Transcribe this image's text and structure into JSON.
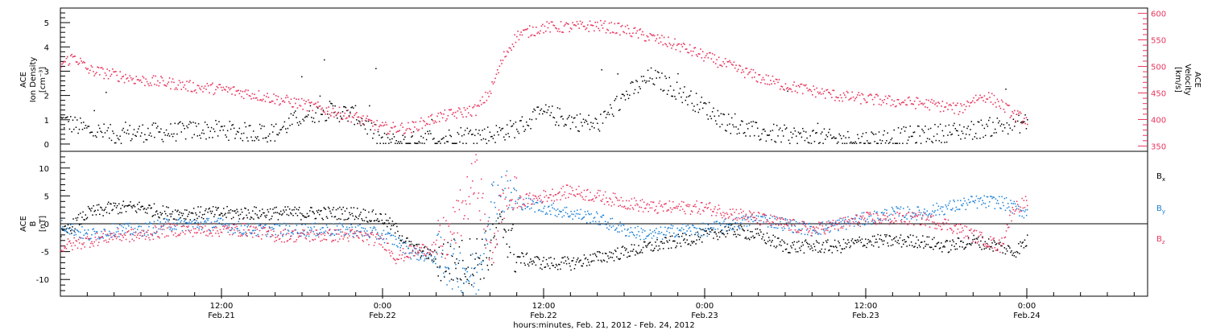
{
  "chart_data": [
    {
      "type": "scatter",
      "panel": "top",
      "left_ylabel": [
        "ACE",
        "Ion Density",
        "[cm⁻³]"
      ],
      "right_ylabel": [
        "ACE",
        "Velocity",
        "[km/s]"
      ],
      "left_ylim": [
        -0.3,
        5.6
      ],
      "right_ylim": [
        340,
        610
      ],
      "left_ticks": [
        0,
        1,
        2,
        3,
        4,
        5
      ],
      "right_ticks": [
        350,
        400,
        450,
        500,
        550,
        600
      ],
      "grid": false,
      "series": [
        {
          "name": "Ion Density",
          "color": "#000000",
          "axis": "left",
          "x": [
            0,
            2,
            4,
            6,
            8,
            10,
            12,
            14,
            16,
            18,
            20,
            22,
            24,
            25,
            26,
            27,
            28,
            30,
            32,
            34,
            36,
            38,
            40,
            42,
            44,
            46,
            48,
            50,
            52,
            54,
            56,
            58,
            60,
            62,
            64,
            66,
            68,
            70,
            72
          ],
          "y": [
            1.0,
            0.6,
            0.4,
            0.5,
            0.5,
            0.6,
            0.6,
            0.5,
            0.5,
            1.2,
            1.4,
            1.2,
            0.1,
            0.1,
            0.1,
            0.3,
            0.2,
            0.4,
            0.4,
            0.7,
            1.3,
            1.0,
            0.8,
            2.0,
            2.8,
            2.2,
            1.5,
            0.8,
            0.5,
            0.4,
            0.3,
            0.2,
            0.2,
            0.3,
            0.4,
            0.5,
            0.6,
            0.8,
            0.9
          ]
        },
        {
          "name": "Velocity",
          "color": "#e8365e",
          "axis": "right",
          "x": [
            0,
            1,
            2,
            4,
            6,
            8,
            10,
            12,
            14,
            16,
            18,
            20,
            22,
            24,
            25,
            26,
            28,
            30,
            31,
            32,
            33,
            34,
            36,
            38,
            40,
            42,
            44,
            46,
            48,
            50,
            52,
            54,
            56,
            58,
            60,
            62,
            64,
            66,
            67,
            68,
            69,
            70,
            71,
            72
          ],
          "y": [
            505,
            520,
            495,
            485,
            475,
            470,
            462,
            458,
            450,
            440,
            430,
            418,
            405,
            385,
            385,
            385,
            405,
            415,
            420,
            455,
            520,
            560,
            575,
            575,
            578,
            570,
            555,
            540,
            520,
            500,
            480,
            465,
            455,
            445,
            440,
            435,
            432,
            425,
            420,
            440,
            445,
            430,
            410,
            400
          ]
        }
      ]
    },
    {
      "type": "scatter",
      "panel": "bottom",
      "left_ylabel": [
        "ACE",
        "B",
        "[nT]"
      ],
      "ylim": [
        -13,
        13
      ],
      "ticks": [
        -10,
        -5,
        0,
        5,
        10
      ],
      "zero_line": true,
      "grid": false,
      "xlim": [
        0,
        81
      ],
      "x_ticks": [
        {
          "x": 12,
          "labels": [
            "12:00",
            "Feb.21"
          ]
        },
        {
          "x": 24,
          "labels": [
            "0:00",
            "Feb.22"
          ]
        },
        {
          "x": 36,
          "labels": [
            "12:00",
            "Feb.22"
          ]
        },
        {
          "x": 48,
          "labels": [
            "0:00",
            "Feb.23"
          ]
        },
        {
          "x": 60,
          "labels": [
            "12:00",
            "Feb.23"
          ]
        },
        {
          "x": 72,
          "labels": [
            "0:00",
            "Feb.24"
          ]
        }
      ],
      "xlabel": "hours:minutes, Feb. 21, 2012 - Feb. 24, 2012",
      "series": [
        {
          "name": "Bx",
          "label": "B",
          "sub": "x",
          "color": "#000000",
          "x": [
            0,
            2,
            4,
            6,
            8,
            10,
            12,
            14,
            16,
            18,
            20,
            22,
            24,
            25,
            26,
            28,
            30,
            31,
            32,
            33,
            34,
            36,
            38,
            40,
            42,
            44,
            46,
            48,
            50,
            52,
            54,
            56,
            58,
            60,
            62,
            64,
            66,
            68,
            70,
            71,
            72
          ],
          "y": [
            -2,
            2,
            3,
            3,
            2,
            2,
            2,
            2,
            2,
            2,
            2,
            2,
            1,
            -1,
            -4,
            -6,
            -7,
            -6,
            -5,
            0,
            -6,
            -7,
            -7,
            -6,
            -5,
            -4,
            -3,
            -2,
            -1,
            -2,
            -4,
            -4,
            -4,
            -3,
            -3,
            -3,
            -4,
            -3,
            -4,
            -5,
            -3
          ]
        },
        {
          "name": "By",
          "label": "B",
          "sub": "y",
          "color": "#1a7fd6",
          "x": [
            0,
            2,
            4,
            6,
            8,
            10,
            12,
            14,
            16,
            18,
            20,
            22,
            24,
            25,
            26,
            28,
            29,
            30,
            31,
            32,
            33,
            34,
            36,
            38,
            40,
            42,
            44,
            46,
            48,
            50,
            52,
            54,
            56,
            58,
            60,
            62,
            64,
            66,
            68,
            70,
            71,
            72
          ],
          "y": [
            0,
            -2,
            -1,
            -1,
            0,
            0,
            0,
            -1,
            -1,
            -1,
            -1,
            -1,
            -2,
            -3,
            -5,
            -6,
            -7,
            -8,
            -10,
            4,
            6,
            4,
            3,
            2,
            1,
            -1,
            -2,
            -1,
            -1,
            0,
            1,
            0,
            -1,
            0,
            1,
            2,
            2,
            3,
            4,
            4,
            3,
            2
          ]
        },
        {
          "name": "Bz",
          "label": "B",
          "sub": "z",
          "color": "#e8365e",
          "x": [
            0,
            2,
            4,
            6,
            8,
            10,
            12,
            14,
            16,
            18,
            20,
            22,
            24,
            25,
            26,
            28,
            29,
            30,
            31,
            32,
            33,
            34,
            36,
            38,
            40,
            42,
            44,
            46,
            48,
            50,
            52,
            54,
            56,
            58,
            60,
            62,
            64,
            66,
            68,
            70,
            71,
            72
          ],
          "y": [
            -4,
            -3,
            -2,
            -2,
            -1,
            -1,
            -1,
            -1,
            -2,
            -2,
            -2,
            -2,
            -3,
            -6,
            -5,
            -4,
            -2,
            3,
            9,
            -6,
            5,
            4,
            5,
            6,
            5,
            4,
            3,
            3,
            3,
            2,
            1,
            0,
            -1,
            0,
            1,
            1,
            1,
            0,
            -2,
            -4,
            3,
            4
          ]
        }
      ]
    }
  ]
}
